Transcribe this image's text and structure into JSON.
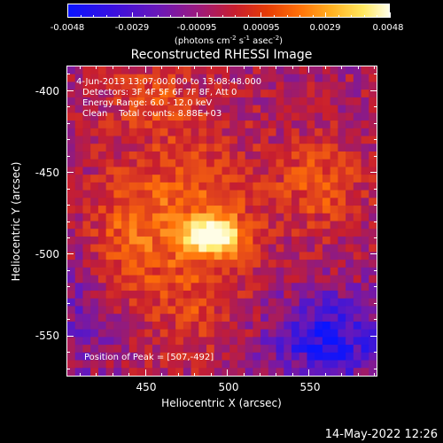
{
  "colorbar": {
    "labels": [
      "-0.0048",
      "-0.0029",
      "-0.00095",
      "0.00095",
      "0.0029",
      "0.0048"
    ],
    "units": "(photons cm",
    "units_sup1": "-2",
    "units_mid": " s",
    "units_sup2": "-1",
    "units_mid2": " asec",
    "units_sup3": "-2",
    "units_end": ")"
  },
  "title": "Reconstructed RHESSI Image",
  "info": {
    "line1": "4-Jun-2013 13:07:00.000 to 13:08:48.000",
    "line2": "Detectors: 3F 4F 5F 6F 7F 8F, Att 0",
    "line3": "Energy Range: 6.0 - 12.0 keV",
    "line4": "Clean    Total counts: 8.88E+03",
    "peak": "Position of Peak = [507,-492]"
  },
  "axes": {
    "xlabel": "Heliocentric X (arcsec)",
    "ylabel": "Heliocentric Y (arcsec)",
    "xticks": [
      "450",
      "500",
      "550"
    ],
    "yticks": [
      "-400",
      "-450",
      "-500",
      "-550"
    ]
  },
  "timestamp": "14-May-2022 12:26",
  "chart_data": {
    "type": "heatmap",
    "title": "Reconstructed RHESSI Image",
    "xlabel": "Heliocentric X (arcsec)",
    "ylabel": "Heliocentric Y (arcsec)",
    "xlim": [
      402,
      592
    ],
    "ylim": [
      -575,
      -385
    ],
    "color_range": [
      -0.0048,
      0.0048
    ],
    "peak": [
      507,
      -492
    ],
    "colormap": [
      "#0a14ff",
      "#6a18b8",
      "#c81e2e",
      "#ff7008",
      "#ffe860",
      "#fffde6"
    ]
  }
}
